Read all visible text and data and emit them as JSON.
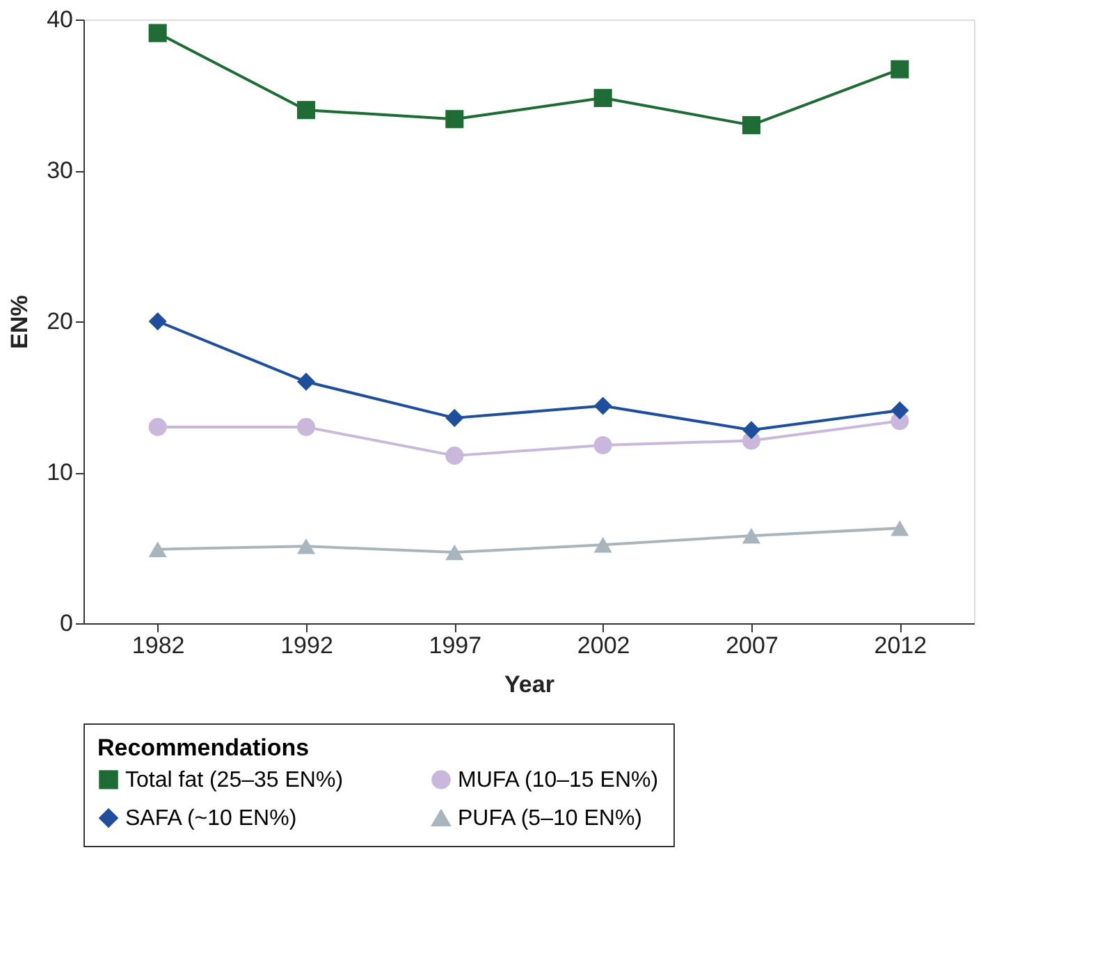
{
  "chart_data": {
    "type": "line",
    "xlabel": "Year",
    "ylabel": "EN%",
    "legend_title": "Recommendations",
    "categories": [
      "1982",
      "1992",
      "1997",
      "2002",
      "2007",
      "2012"
    ],
    "ylim": [
      0,
      40
    ],
    "yticks": [
      0,
      10,
      20,
      30,
      40
    ],
    "grid": false,
    "legend": "bottom",
    "line_style": "solid",
    "series": [
      {
        "name": "Total fat (25–35 EN%)",
        "color": "#1e6b35",
        "marker": "square",
        "values": [
          39.1,
          34.0,
          33.4,
          34.8,
          33.0,
          36.7
        ]
      },
      {
        "name": "MUFA (10–15 EN%)",
        "color": "#c9b8dc",
        "marker": "circle",
        "values": [
          13.0,
          13.0,
          11.1,
          11.8,
          12.1,
          13.4
        ]
      },
      {
        "name": "SAFA (~10 EN%)",
        "color": "#1f4e9c",
        "marker": "diamond",
        "values": [
          20.0,
          16.0,
          13.6,
          14.4,
          12.8,
          14.1
        ]
      },
      {
        "name": "PUFA (5–10 EN%)",
        "color": "#aab4bc",
        "marker": "triangle",
        "values": [
          4.9,
          5.1,
          4.7,
          5.2,
          5.8,
          6.3
        ]
      }
    ]
  }
}
